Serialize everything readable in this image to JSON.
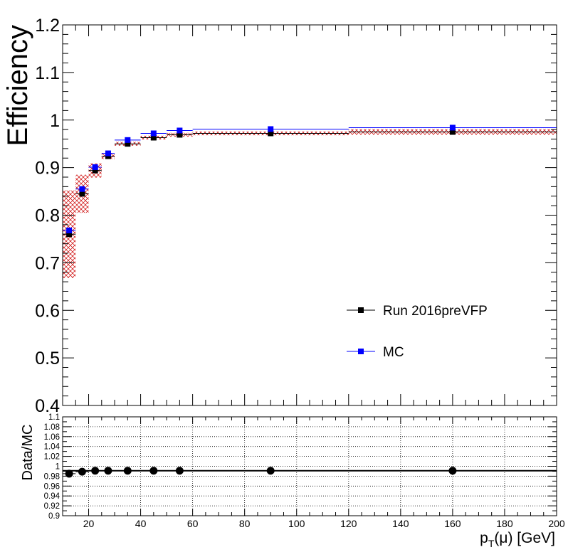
{
  "chart_data": [
    {
      "type": "scatter",
      "ylabel": "Efficiency",
      "xlim": [
        10,
        200
      ],
      "ylim": [
        0.4,
        1.2
      ],
      "yticks": [
        0.4,
        0.5,
        0.6,
        0.7,
        0.8,
        0.9,
        1.0,
        1.1,
        1.2
      ],
      "ytick_labels": [
        "0.4",
        "0.5",
        "0.6",
        "0.7",
        "0.8",
        "0.9",
        "1",
        "1.1",
        "1.2"
      ],
      "legend": {
        "placement": "center-right",
        "entries": [
          "Run 2016preVFP",
          "MC"
        ]
      },
      "series": [
        {
          "name": "Run 2016preVFP",
          "color": "#000000",
          "marker": "square",
          "points": [
            {
              "x": 12.5,
              "xlo": 10,
              "xhi": 15,
              "y": 0.76,
              "syst": 0.092
            },
            {
              "x": 17.5,
              "xlo": 15,
              "xhi": 20,
              "y": 0.845,
              "syst": 0.04
            },
            {
              "x": 22.5,
              "xlo": 20,
              "xhi": 25,
              "y": 0.894,
              "syst": 0.015
            },
            {
              "x": 27.5,
              "xlo": 25,
              "xhi": 30,
              "y": 0.924,
              "syst": 0.006
            },
            {
              "x": 35,
              "xlo": 30,
              "xhi": 40,
              "y": 0.95,
              "syst": 0.004
            },
            {
              "x": 45,
              "xlo": 40,
              "xhi": 50,
              "y": 0.963,
              "syst": 0.004
            },
            {
              "x": 55,
              "xlo": 50,
              "xhi": 60,
              "y": 0.969,
              "syst": 0.004
            },
            {
              "x": 90,
              "xlo": 60,
              "xhi": 120,
              "y": 0.972,
              "syst": 0.004
            },
            {
              "x": 160,
              "xlo": 120,
              "xhi": 200,
              "y": 0.975,
              "syst": 0.006
            }
          ]
        },
        {
          "name": "MC",
          "color": "#0000ff",
          "marker": "square",
          "points": [
            {
              "x": 12.5,
              "xlo": 10,
              "xhi": 15,
              "y": 0.768
            },
            {
              "x": 17.5,
              "xlo": 15,
              "xhi": 20,
              "y": 0.855
            },
            {
              "x": 22.5,
              "xlo": 20,
              "xhi": 25,
              "y": 0.901
            },
            {
              "x": 27.5,
              "xlo": 25,
              "xhi": 30,
              "y": 0.93
            },
            {
              "x": 35,
              "xlo": 30,
              "xhi": 40,
              "y": 0.958
            },
            {
              "x": 45,
              "xlo": 40,
              "xhi": 50,
              "y": 0.972
            },
            {
              "x": 55,
              "xlo": 50,
              "xhi": 60,
              "y": 0.978
            },
            {
              "x": 90,
              "xlo": 60,
              "xhi": 120,
              "y": 0.981
            },
            {
              "x": 160,
              "xlo": 120,
              "xhi": 200,
              "y": 0.984
            }
          ]
        }
      ],
      "uncertainty_band_color": "#cc0000"
    },
    {
      "type": "scatter",
      "xlabel_main": "p",
      "xlabel_sub": "T",
      "xlabel_rest": "(μ) [GeV]",
      "ylabel": "Data/MC",
      "xlim": [
        10,
        200
      ],
      "ylim": [
        0.9,
        1.1
      ],
      "xticks": [
        20,
        40,
        60,
        80,
        100,
        120,
        140,
        160,
        180,
        200
      ],
      "xtick_labels": [
        "20",
        "40",
        "60",
        "80",
        "100",
        "120",
        "140",
        "160",
        "180",
        "200"
      ],
      "yticks": [
        0.9,
        0.92,
        0.94,
        0.96,
        0.98,
        1.0,
        1.02,
        1.04,
        1.06,
        1.08,
        1.1
      ],
      "ytick_labels": [
        "0.9",
        "0.92",
        "0.94",
        "0.96",
        "0.98",
        "1",
        "1.02",
        "1.04",
        "1.06",
        "1.08",
        "1.1"
      ],
      "grid": true,
      "reference_line": 0.991,
      "series": [
        {
          "color": "#000000",
          "marker": "circle",
          "points": [
            {
              "x": 12.5,
              "xlo": 10,
              "xhi": 15,
              "y": 0.985
            },
            {
              "x": 17.5,
              "xlo": 15,
              "xhi": 20,
              "y": 0.989
            },
            {
              "x": 22.5,
              "xlo": 20,
              "xhi": 25,
              "y": 0.991
            },
            {
              "x": 27.5,
              "xlo": 25,
              "xhi": 30,
              "y": 0.991
            },
            {
              "x": 35,
              "xlo": 30,
              "xhi": 40,
              "y": 0.991
            },
            {
              "x": 45,
              "xlo": 40,
              "xhi": 50,
              "y": 0.991
            },
            {
              "x": 55,
              "xlo": 50,
              "xhi": 60,
              "y": 0.991
            },
            {
              "x": 90,
              "xlo": 60,
              "xhi": 120,
              "y": 0.991
            },
            {
              "x": 160,
              "xlo": 120,
              "xhi": 200,
              "y": 0.991
            }
          ]
        }
      ]
    }
  ]
}
